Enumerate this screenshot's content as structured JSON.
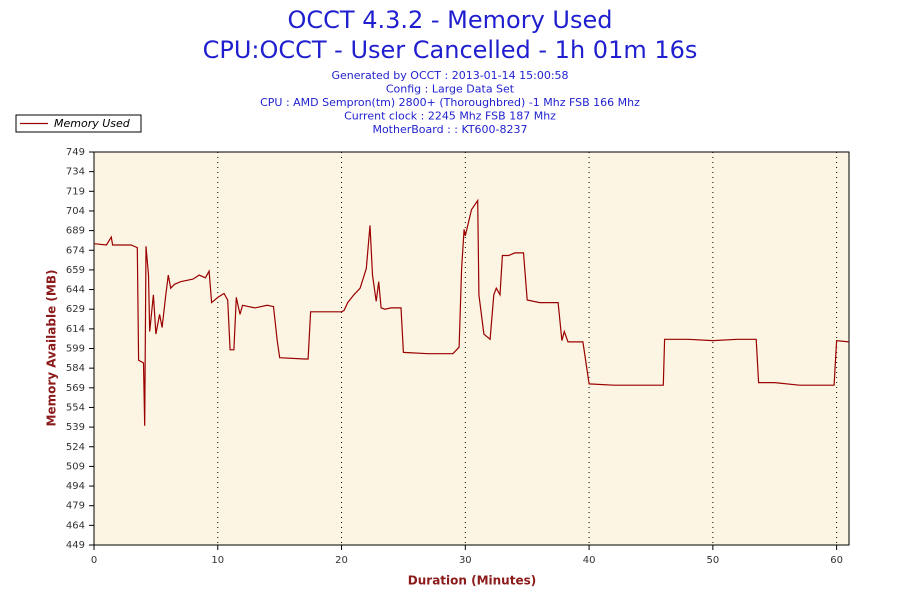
{
  "chart_data": {
    "type": "line",
    "title": [
      "OCCT 4.3.2 - Memory Used",
      "CPU:OCCT - User Cancelled - 1h 01m 16s"
    ],
    "subtitle": [
      "Generated by OCCT : 2013-01-14 15:00:58",
      "Config : Large Data Set",
      "CPU : AMD Sempron(tm) 2800+ (Thoroughbred) -1 Mhz FSB 166 Mhz",
      "Current clock : 2245 Mhz FSB 187 Mhz",
      "MotherBoard : : KT600-8237"
    ],
    "x_label": "Duration (Minutes)",
    "y_label": "Memory Available (MB)",
    "legend": "top-left",
    "grid": true,
    "xlim": [
      0,
      61
    ],
    "xticks": [
      0,
      10,
      20,
      30,
      40,
      50,
      60
    ],
    "ylim": [
      449,
      749
    ],
    "yticks": [
      449,
      464,
      479,
      494,
      509,
      524,
      539,
      554,
      569,
      584,
      599,
      614,
      629,
      644,
      659,
      674,
      689,
      704,
      719,
      734,
      749
    ],
    "x": [
      0,
      1,
      1.4,
      1.5,
      3,
      3.5,
      3.6,
      4,
      4.1,
      4.2,
      4.4,
      4.5,
      4.8,
      5,
      5.3,
      5.5,
      5.8,
      6,
      6.2,
      6.5,
      7,
      8,
      8.5,
      9,
      9.3,
      9.5,
      10,
      10.5,
      10.8,
      11,
      11.3,
      11.5,
      11.8,
      12,
      13,
      14,
      14.5,
      14.8,
      15,
      17,
      17.3,
      17.5,
      20,
      20.2,
      20.5,
      21,
      21.5,
      22,
      22.3,
      22.5,
      22.8,
      23,
      23.2,
      23.5,
      24,
      24.8,
      25,
      27,
      29,
      29.5,
      29.7,
      29.9,
      30,
      30.5,
      31,
      31.1,
      31.5,
      32,
      32.3,
      32.5,
      32.8,
      33,
      33.5,
      34,
      34.7,
      35,
      36,
      37.5,
      37.8,
      38,
      38.3,
      39.5,
      40,
      42,
      45,
      46,
      46.1,
      48,
      50,
      52,
      53.5,
      53.7,
      55,
      57,
      59,
      59.8,
      60,
      61
    ],
    "series": [
      {
        "name": "Memory Used",
        "color": "#990000",
        "values": [
          679,
          678,
          684,
          678,
          678,
          676,
          590,
          588,
          540,
          677,
          655,
          612,
          640,
          610,
          625,
          615,
          640,
          655,
          645,
          648,
          650,
          652,
          655,
          653,
          658,
          634,
          638,
          641,
          636,
          598,
          598,
          638,
          625,
          632,
          630,
          632,
          631,
          605,
          592,
          591,
          591,
          627,
          627,
          628,
          634,
          640,
          645,
          660,
          693,
          655,
          635,
          650,
          630,
          629,
          630,
          630,
          596,
          595,
          595,
          600,
          660,
          690,
          685,
          705,
          712,
          640,
          610,
          606,
          640,
          645,
          640,
          670,
          670,
          672,
          672,
          636,
          634,
          634,
          605,
          612,
          604,
          604,
          572,
          571,
          571,
          571,
          606,
          606,
          605,
          606,
          606,
          573,
          573,
          571,
          571,
          571,
          605,
          604
        ]
      }
    ]
  }
}
